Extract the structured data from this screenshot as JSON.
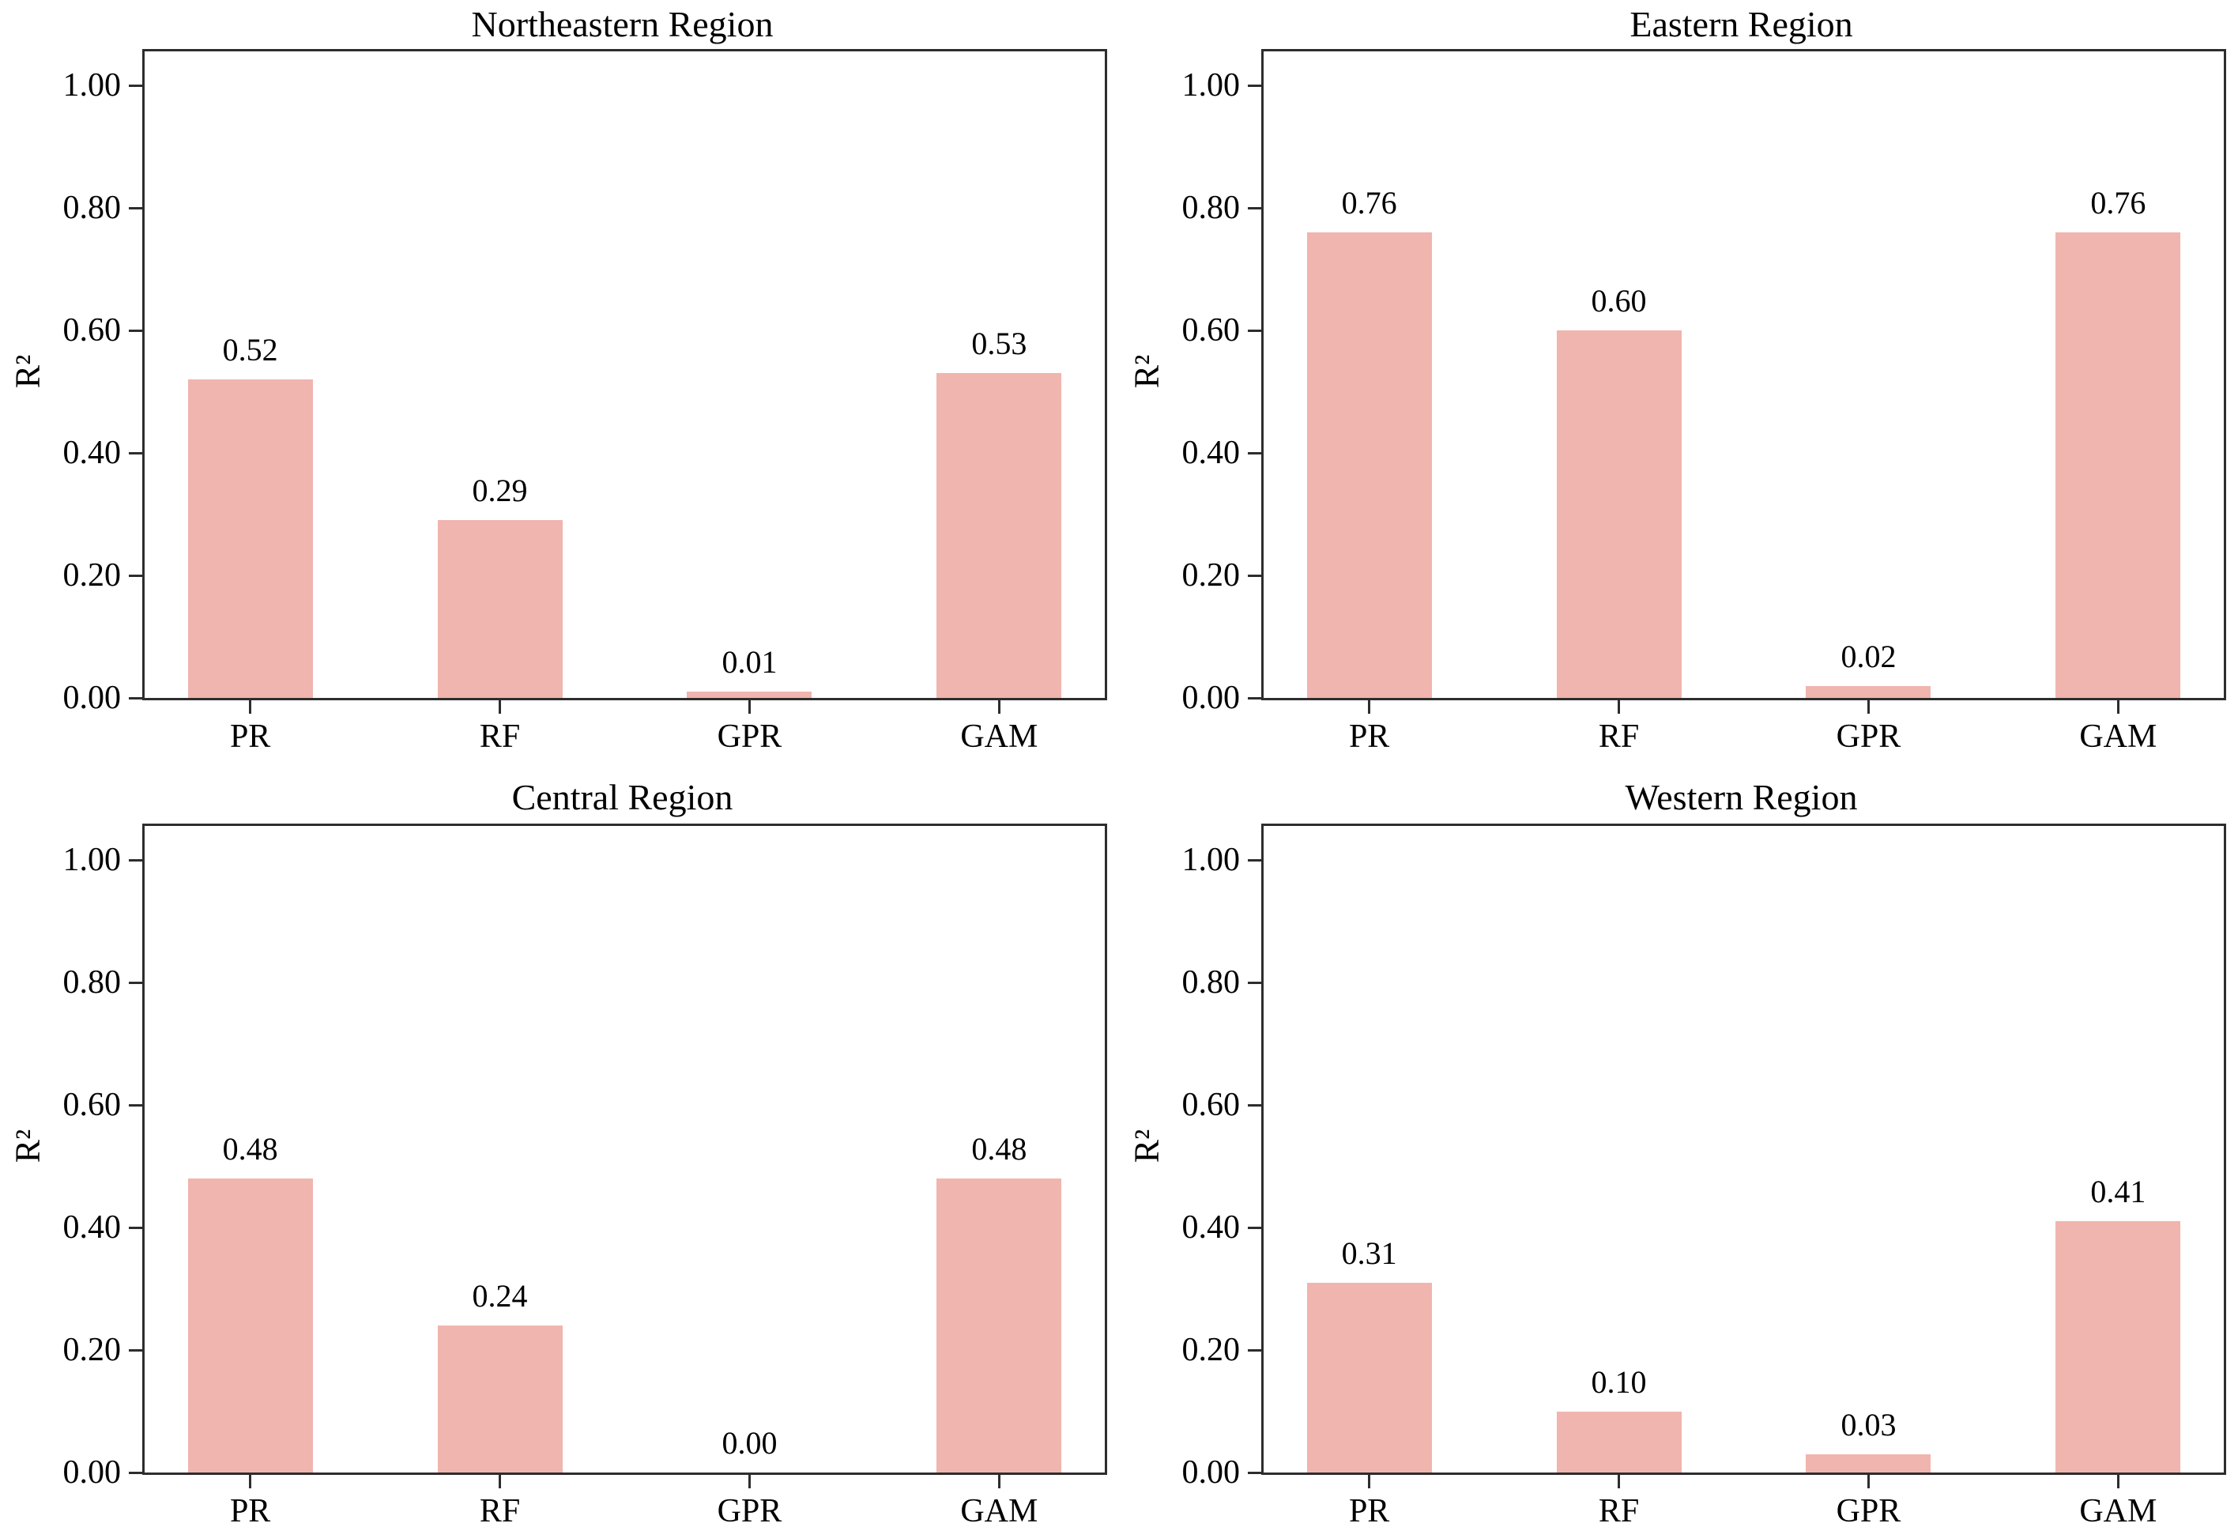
{
  "figure": {
    "background_color": "#ffffff",
    "bar_color": "#F0B5AE",
    "spine_color": "#2d2d2d",
    "text_color": "#000000",
    "layout": "2x2 grid of subplots"
  },
  "chart_data": [
    {
      "type": "bar",
      "title": "Northeastern Region",
      "categories": [
        "PR",
        "RF",
        "GPR",
        "GAM"
      ],
      "values": [
        0.52,
        0.29,
        0.01,
        0.53
      ],
      "value_labels": [
        "0.52",
        "0.29",
        "0.01",
        "0.53"
      ],
      "xlabel": "",
      "ylabel": "R²",
      "yticks": [
        "0.00",
        "0.20",
        "0.40",
        "0.60",
        "0.80",
        "1.00"
      ],
      "ylim": [
        0,
        1.055
      ],
      "grid": false,
      "legend": null
    },
    {
      "type": "bar",
      "title": "Eastern Region",
      "categories": [
        "PR",
        "RF",
        "GPR",
        "GAM"
      ],
      "values": [
        0.76,
        0.6,
        0.02,
        0.76
      ],
      "value_labels": [
        "0.76",
        "0.60",
        "0.02",
        "0.76"
      ],
      "xlabel": "",
      "ylabel": "R²",
      "yticks": [
        "0.00",
        "0.20",
        "0.40",
        "0.60",
        "0.80",
        "1.00"
      ],
      "ylim": [
        0,
        1.055
      ],
      "grid": false,
      "legend": null
    },
    {
      "type": "bar",
      "title": "Central Region",
      "categories": [
        "PR",
        "RF",
        "GPR",
        "GAM"
      ],
      "values": [
        0.48,
        0.24,
        0.0,
        0.48
      ],
      "value_labels": [
        "0.48",
        "0.24",
        "0.00",
        "0.48"
      ],
      "xlabel": "",
      "ylabel": "R²",
      "yticks": [
        "0.00",
        "0.20",
        "0.40",
        "0.60",
        "0.80",
        "1.00"
      ],
      "ylim": [
        0,
        1.055
      ],
      "grid": false,
      "legend": null
    },
    {
      "type": "bar",
      "title": "Western Region",
      "categories": [
        "PR",
        "RF",
        "GPR",
        "GAM"
      ],
      "values": [
        0.31,
        0.1,
        0.03,
        0.41
      ],
      "value_labels": [
        "0.31",
        "0.10",
        "0.03",
        "0.41"
      ],
      "xlabel": "",
      "ylabel": "R²",
      "yticks": [
        "0.00",
        "0.20",
        "0.40",
        "0.60",
        "0.80",
        "1.00"
      ],
      "ylim": [
        0,
        1.055
      ],
      "grid": false,
      "legend": null
    }
  ]
}
